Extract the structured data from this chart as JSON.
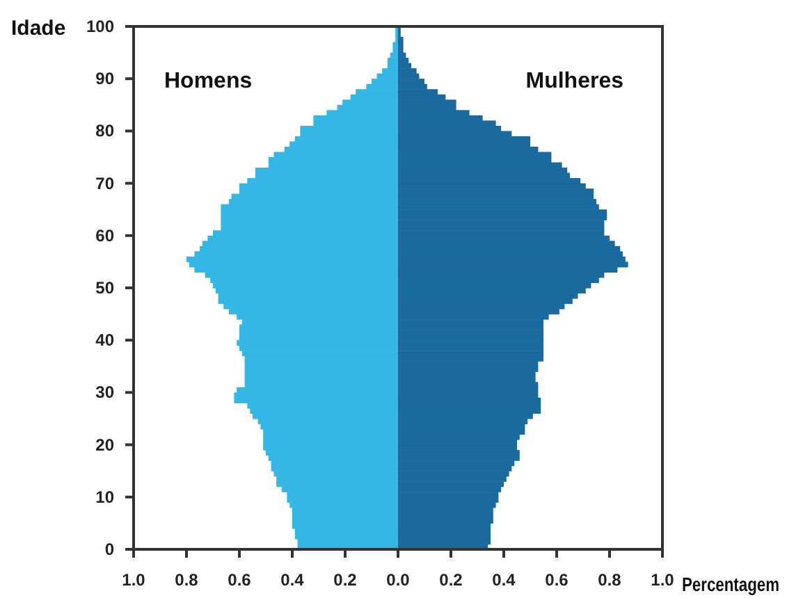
{
  "chart_data": {
    "type": "bar",
    "orientation": "horizontal",
    "stacked": true,
    "xlabel": "Percentagem",
    "ylabel": "Idade",
    "x": [
      0.5,
      1.5,
      2.5,
      3.5,
      4.5,
      5.5,
      6.5,
      7.5,
      8.5,
      9.5,
      10.5,
      11.5,
      12.5,
      13.5,
      14.5,
      15.5,
      16.5,
      17.5,
      18.5,
      19.5,
      20.5,
      21.5,
      22.5,
      23.5,
      24.5,
      25.5,
      26.5,
      27.5,
      28.5,
      29.5,
      30.5,
      31.5,
      32.5,
      33.5,
      34.5,
      35.5,
      36.5,
      37.5,
      38.5,
      39.5,
      40.5,
      41.5,
      42.5,
      43.5,
      44.5,
      45.5,
      46.5,
      47.5,
      48.5,
      49.5,
      50.5,
      51.5,
      52.5,
      53.5,
      54.5,
      55.5,
      56.5,
      57.5,
      58.5,
      59.5,
      60.5,
      61.5,
      62.5,
      63.5,
      64.5,
      65.5,
      66.5,
      67.5,
      68.5,
      69.5,
      70.5,
      71.5,
      72.5,
      73.5,
      74.5,
      75.5,
      76.5,
      77.5,
      78.5,
      79.5,
      80.5,
      81.5,
      82.5,
      83.5,
      84.5,
      85.5,
      86.5,
      87.5,
      88.5,
      89.5,
      90.5,
      91.5,
      92.5,
      93.5,
      94.5,
      95.5,
      96.5,
      97.5,
      98.5,
      99.5
    ],
    "series": [
      {
        "name": "Homens",
        "color": "#35b7e5",
        "values": [
          -0.38,
          -0.38,
          -0.39,
          -0.39,
          -0.4,
          -0.4,
          -0.4,
          -0.4,
          -0.41,
          -0.42,
          -0.42,
          -0.44,
          -0.46,
          -0.46,
          -0.47,
          -0.48,
          -0.48,
          -0.49,
          -0.5,
          -0.51,
          -0.51,
          -0.51,
          -0.51,
          -0.52,
          -0.53,
          -0.55,
          -0.56,
          -0.57,
          -0.62,
          -0.62,
          -0.61,
          -0.58,
          -0.58,
          -0.58,
          -0.58,
          -0.58,
          -0.58,
          -0.59,
          -0.6,
          -0.61,
          -0.6,
          -0.6,
          -0.6,
          -0.59,
          -0.61,
          -0.64,
          -0.66,
          -0.68,
          -0.68,
          -0.69,
          -0.7,
          -0.71,
          -0.73,
          -0.77,
          -0.79,
          -0.8,
          -0.77,
          -0.75,
          -0.74,
          -0.72,
          -0.7,
          -0.67,
          -0.67,
          -0.67,
          -0.67,
          -0.67,
          -0.64,
          -0.63,
          -0.6,
          -0.6,
          -0.57,
          -0.54,
          -0.54,
          -0.49,
          -0.49,
          -0.47,
          -0.43,
          -0.41,
          -0.39,
          -0.37,
          -0.37,
          -0.32,
          -0.32,
          -0.27,
          -0.23,
          -0.21,
          -0.18,
          -0.16,
          -0.12,
          -0.1,
          -0.08,
          -0.06,
          -0.04,
          -0.04,
          -0.03,
          -0.02,
          -0.02,
          -0.01,
          -0.01,
          -0.01
        ]
      },
      {
        "name": "Mulheres",
        "color": "#1a6aa0",
        "values": [
          0.34,
          0.35,
          0.35,
          0.35,
          0.35,
          0.36,
          0.36,
          0.36,
          0.37,
          0.38,
          0.38,
          0.39,
          0.4,
          0.41,
          0.42,
          0.43,
          0.44,
          0.46,
          0.46,
          0.45,
          0.45,
          0.46,
          0.48,
          0.48,
          0.49,
          0.51,
          0.54,
          0.54,
          0.54,
          0.53,
          0.53,
          0.53,
          0.52,
          0.52,
          0.53,
          0.53,
          0.55,
          0.55,
          0.55,
          0.55,
          0.55,
          0.55,
          0.55,
          0.55,
          0.57,
          0.61,
          0.63,
          0.66,
          0.68,
          0.71,
          0.73,
          0.76,
          0.78,
          0.83,
          0.87,
          0.86,
          0.85,
          0.84,
          0.82,
          0.8,
          0.78,
          0.78,
          0.78,
          0.79,
          0.79,
          0.76,
          0.75,
          0.74,
          0.74,
          0.71,
          0.69,
          0.65,
          0.64,
          0.62,
          0.58,
          0.58,
          0.53,
          0.5,
          0.5,
          0.43,
          0.39,
          0.37,
          0.32,
          0.27,
          0.22,
          0.22,
          0.18,
          0.15,
          0.11,
          0.1,
          0.08,
          0.07,
          0.05,
          0.04,
          0.03,
          0.02,
          0.02,
          0.02,
          0.01,
          0.01
        ]
      }
    ],
    "xlim": [
      -1,
      1
    ],
    "xticks": [
      {
        "value": -1,
        "label": "1.0"
      },
      {
        "value": -0.8,
        "label": "0.8"
      },
      {
        "value": -0.6,
        "label": "0.6"
      },
      {
        "value": -0.4,
        "label": "0.4"
      },
      {
        "value": -0.2,
        "label": "0.2"
      },
      {
        "value": 0,
        "label": "0.0"
      },
      {
        "value": 0.2,
        "label": "0.2"
      },
      {
        "value": 0.4,
        "label": "0.4"
      },
      {
        "value": 0.6,
        "label": "0.6"
      },
      {
        "value": 0.8,
        "label": "0.8"
      },
      {
        "value": 1,
        "label": "1.0"
      }
    ],
    "ylim": [
      0,
      100
    ],
    "yticks": [
      0,
      10,
      20,
      30,
      40,
      50,
      60,
      70,
      80,
      90,
      100
    ]
  }
}
